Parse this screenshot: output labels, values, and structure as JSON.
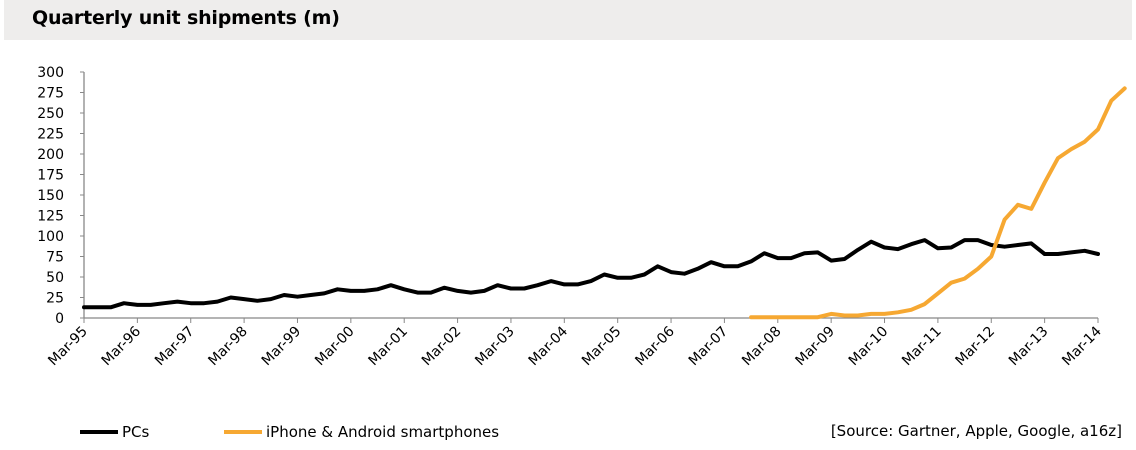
{
  "title": "Quarterly unit shipments (m)",
  "source": "[Source: Gartner, Apple, Google, a16z]",
  "colors": {
    "pcs": "#000000",
    "smartphones": "#f6a832",
    "title_bg": "#eeedec"
  },
  "chart_data": {
    "type": "line",
    "title": "Quarterly unit shipments (m)",
    "xlabel": "",
    "ylabel": "",
    "ylim": [
      0,
      300
    ],
    "yticks": [
      0,
      25,
      50,
      75,
      100,
      125,
      150,
      175,
      200,
      225,
      250,
      275,
      300
    ],
    "grid": false,
    "legend": "bottom-left",
    "x_tick_labels": [
      "Mar-95",
      "Mar-96",
      "Mar-97",
      "Mar-98",
      "Mar-99",
      "Mar-00",
      "Mar-01",
      "Mar-02",
      "Mar-03",
      "Mar-04",
      "Mar-05",
      "Mar-06",
      "Mar-07",
      "Mar-08",
      "Mar-09",
      "Mar-10",
      "Mar-11",
      "Mar-12",
      "Mar-13",
      "Mar-14"
    ],
    "x_start": "Mar-95",
    "x_end": "Mar-14",
    "series": [
      {
        "name": "PCs",
        "x_start": "Mar-95",
        "values": [
          13,
          13,
          13,
          18,
          16,
          16,
          18,
          20,
          18,
          18,
          20,
          25,
          23,
          21,
          23,
          28,
          26,
          28,
          30,
          35,
          33,
          33,
          35,
          40,
          35,
          31,
          31,
          37,
          33,
          31,
          33,
          40,
          36,
          36,
          40,
          45,
          41,
          41,
          45,
          53,
          49,
          49,
          53,
          63,
          56,
          54,
          60,
          68,
          63,
          63,
          69,
          79,
          73,
          73,
          79,
          80,
          70,
          72,
          83,
          93,
          86,
          84,
          90,
          95,
          85,
          86,
          95,
          95,
          89,
          87,
          89,
          91,
          78,
          78,
          80,
          82,
          78
        ]
      },
      {
        "name": "iPhone & Android smartphones",
        "x_start": "Sep-07",
        "values": [
          1,
          1,
          1,
          1,
          1,
          1,
          5,
          3,
          3,
          5,
          5,
          7,
          10,
          17,
          30,
          43,
          48,
          60,
          75,
          120,
          138,
          133,
          165,
          195,
          206,
          215,
          230,
          265,
          280
        ]
      }
    ]
  }
}
